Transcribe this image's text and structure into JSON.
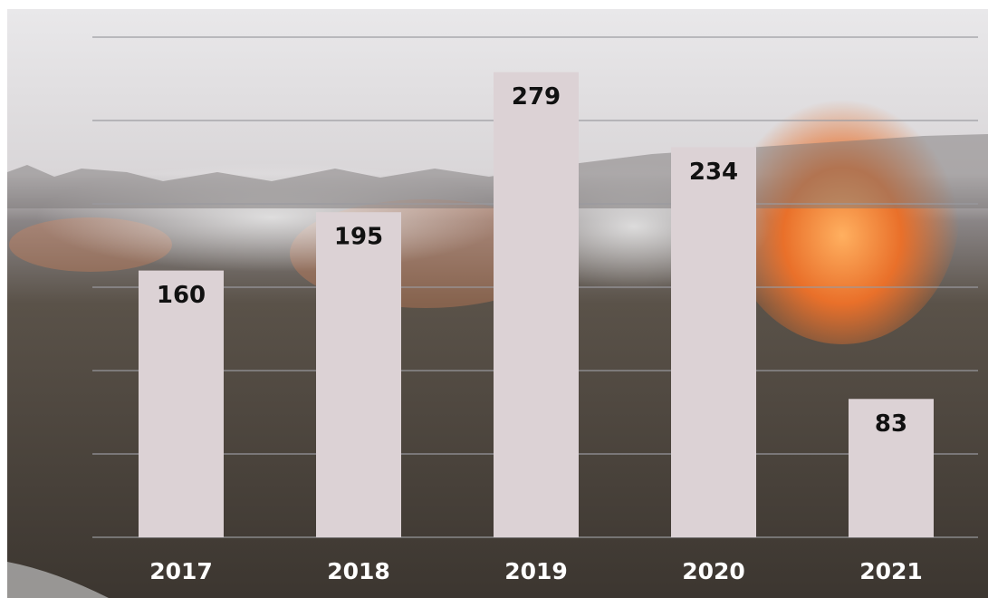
{
  "chart_data": {
    "type": "bar",
    "categories": [
      "2017",
      "2018",
      "2019",
      "2020",
      "2021"
    ],
    "values": [
      160,
      195,
      279,
      234,
      83
    ],
    "color": "#dcd2d5",
    "ylim": [
      0,
      300
    ],
    "yticks": [
      0,
      50,
      100,
      150,
      200,
      250,
      300
    ],
    "grid": true
  }
}
